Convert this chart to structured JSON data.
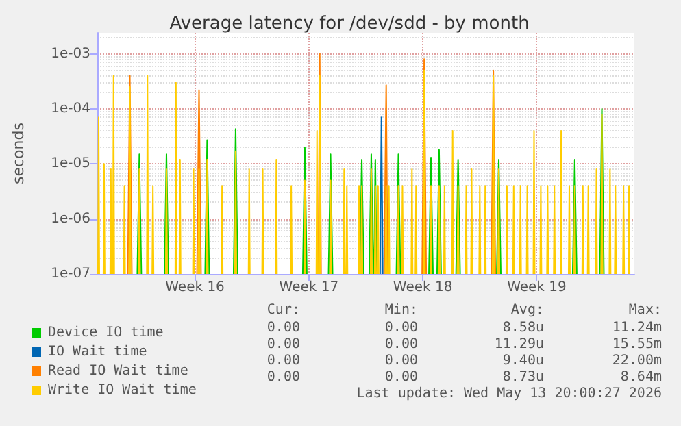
{
  "chart_data": {
    "type": "line",
    "title": "Average latency for /dev/sdd - by month",
    "ylabel": "seconds",
    "xlim": [
      "2026-04-10T12:00",
      "2026-05-13T12:00"
    ],
    "xticks": [
      {
        "value": "2026-04-16T12:00",
        "label": "Week 16"
      },
      {
        "value": "2026-04-23T12:00",
        "label": "Week 17"
      },
      {
        "value": "2026-04-30T12:00",
        "label": "Week 18"
      },
      {
        "value": "2026-05-07T12:00",
        "label": "Week 19"
      }
    ],
    "ylim": [
      1e-07,
      0.0024
    ],
    "yticks": [
      {
        "value": 1e-07,
        "label": "1e-07"
      },
      {
        "value": 1e-06,
        "label": "1e-06"
      },
      {
        "value": 1e-05,
        "label": "1e-05"
      },
      {
        "value": 0.0001,
        "label": "1e-04"
      },
      {
        "value": 0.001,
        "label": "1e-03"
      }
    ],
    "log": "y",
    "grid": true,
    "legend": "bottom left",
    "marker": "none",
    "line_style": "solid",
    "series": [
      {
        "name": "Device IO time",
        "color": "#00cc00",
        "x": [
          "2026-04-12T23:00",
          "2026-04-13T02:00",
          "2026-04-13T05:00",
          "2026-04-14T15:00",
          "2026-04-14T18:00",
          "2026-04-14T21:00",
          "2026-04-17T03:00",
          "2026-04-17T06:00",
          "2026-04-17T09:00",
          "2026-04-18T21:00",
          "2026-04-19T00:00",
          "2026-04-19T03:00",
          "2026-04-23T03:00",
          "2026-04-23T06:00",
          "2026-04-23T09:00",
          "2026-04-24T17:00",
          "2026-04-24T20:00",
          "2026-04-24T23:00",
          "2026-04-26T15:00",
          "2026-04-26T18:00",
          "2026-04-26T21:00",
          "2026-04-27T05:00",
          "2026-04-27T08:00",
          "2026-04-27T11:00",
          "2026-04-27T12:00",
          "2026-04-27T14:00",
          "2026-04-27T16:00",
          "2026-04-28T21:00",
          "2026-04-29T00:00",
          "2026-04-29T03:00",
          "2026-04-30T21:00",
          "2026-05-01T00:00",
          "2026-05-01T03:00",
          "2026-05-01T09:00",
          "2026-05-01T12:00",
          "2026-05-01T15:00",
          "2026-05-02T13:00",
          "2026-05-02T16:00",
          "2026-05-02T19:00",
          "2026-05-05T01:00",
          "2026-05-05T04:00",
          "2026-05-05T07:00",
          "2026-05-09T17:00",
          "2026-05-09T20:00",
          "2026-05-09T23:00",
          "2026-05-11T09:00",
          "2026-05-11T12:00",
          "2026-05-11T15:00"
        ],
        "values": [
          1e-07,
          1.5e-05,
          1e-07,
          1e-07,
          1.5e-05,
          1e-07,
          1e-07,
          2.7e-05,
          1e-07,
          1e-07,
          4.3e-05,
          1e-07,
          1e-07,
          2e-05,
          1e-07,
          1e-07,
          1.5e-05,
          1e-07,
          1e-07,
          1.2e-05,
          1e-07,
          1e-07,
          1.5e-05,
          1e-07,
          1e-07,
          1.2e-05,
          1e-07,
          1e-07,
          1.5e-05,
          1e-07,
          1e-07,
          1.3e-05,
          1e-07,
          1e-07,
          1.8e-05,
          1e-07,
          1e-07,
          1.2e-05,
          1e-07,
          1e-07,
          1.2e-05,
          1e-07,
          1e-07,
          1.2e-05,
          1e-07,
          1e-07,
          0.0001,
          1e-07
        ]
      },
      {
        "name": "IO Wait time",
        "color": "#0066b3",
        "x": [
          "2026-04-27T21:00",
          "2026-04-27T23:00",
          "2026-04-28T01:00"
        ],
        "values": [
          1e-07,
          7e-05,
          1e-07
        ]
      },
      {
        "name": "Read IO Wait time",
        "color": "#ff8000",
        "x": [
          "2026-04-12T09:00",
          "2026-04-12T12:00",
          "2026-04-12T15:00",
          "2026-04-16T15:00",
          "2026-04-16T18:00",
          "2026-04-16T21:00",
          "2026-04-24T02:00",
          "2026-04-24T04:00",
          "2026-04-24T06:00",
          "2026-04-28T03:00",
          "2026-04-28T06:00",
          "2026-04-28T08:00",
          "2026-04-30T11:00",
          "2026-04-30T14:00",
          "2026-04-30T17:00",
          "2026-05-04T17:00",
          "2026-05-04T20:00",
          "2026-05-04T23:00"
        ],
        "values": [
          1e-07,
          0.0004,
          1e-07,
          1e-07,
          0.00022,
          1e-07,
          1e-07,
          0.001,
          1e-07,
          1e-07,
          0.00027,
          1e-07,
          1e-07,
          0.0008,
          1e-07,
          1e-07,
          0.0005,
          1e-07
        ]
      },
      {
        "name": "Write IO Wait time",
        "color": "#ffcc00",
        "x": [
          "2026-04-10T13:00",
          "2026-04-10T14:00",
          "2026-04-10T15:00",
          "2026-04-10T21:00",
          "2026-04-10T22:00",
          "2026-04-10T23:00",
          "2026-04-11T07:00",
          "2026-04-11T08:00",
          "2026-04-11T09:00",
          "2026-04-11T11:00",
          "2026-04-11T12:00",
          "2026-04-11T13:00",
          "2026-04-12T03:00",
          "2026-04-12T04:00",
          "2026-04-12T05:00",
          "2026-04-12T11:00",
          "2026-04-12T12:00",
          "2026-04-12T13:00",
          "2026-04-13T01:00",
          "2026-04-13T02:00",
          "2026-04-13T03:00",
          "2026-04-13T13:00",
          "2026-04-13T14:00",
          "2026-04-13T15:00",
          "2026-04-13T21:00",
          "2026-04-13T22:00",
          "2026-04-13T23:00",
          "2026-04-14T17:00",
          "2026-04-14T18:00",
          "2026-04-14T19:00",
          "2026-04-15T07:00",
          "2026-04-15T08:00",
          "2026-04-15T09:00",
          "2026-04-15T13:00",
          "2026-04-15T14:00",
          "2026-04-15T15:00",
          "2026-04-16T09:00",
          "2026-04-16T10:00",
          "2026-04-16T11:00",
          "2026-04-16T17:00",
          "2026-04-16T18:00",
          "2026-04-16T19:00",
          "2026-04-17T05:00",
          "2026-04-17T06:00",
          "2026-04-17T07:00",
          "2026-04-18T03:00",
          "2026-04-18T04:00",
          "2026-04-18T05:00",
          "2026-04-18T23:00",
          "2026-04-19T00:00",
          "2026-04-19T01:00",
          "2026-04-19T19:00",
          "2026-04-19T20:00",
          "2026-04-19T21:00",
          "2026-04-20T15:00",
          "2026-04-20T16:00",
          "2026-04-20T17:00",
          "2026-04-21T11:00",
          "2026-04-21T12:00",
          "2026-04-21T13:00",
          "2026-04-22T09:00",
          "2026-04-22T10:00",
          "2026-04-22T11:00",
          "2026-04-23T05:00",
          "2026-04-23T06:00",
          "2026-04-23T07:00",
          "2026-04-23T23:00",
          "2026-04-24T00:00",
          "2026-04-24T01:00",
          "2026-04-24T03:00",
          "2026-04-24T04:00",
          "2026-04-24T05:00",
          "2026-04-24T19:00",
          "2026-04-24T20:00",
          "2026-04-24T21:00",
          "2026-04-25T15:00",
          "2026-04-25T16:00",
          "2026-04-25T17:00",
          "2026-04-25T19:00",
          "2026-04-25T20:00",
          "2026-04-25T21:00",
          "2026-04-26T13:00",
          "2026-04-26T14:00",
          "2026-04-26T15:00",
          "2026-04-26T17:00",
          "2026-04-26T18:00",
          "2026-04-26T19:00",
          "2026-04-27T07:00",
          "2026-04-27T08:00",
          "2026-04-27T09:00",
          "2026-04-27T13:00",
          "2026-04-27T14:00",
          "2026-04-27T15:00",
          "2026-04-27T17:00",
          "2026-04-27T18:00",
          "2026-04-27T19:00",
          "2026-04-28T05:00",
          "2026-04-28T06:00",
          "2026-04-28T07:00",
          "2026-04-28T09:00",
          "2026-04-28T10:00",
          "2026-04-28T11:00",
          "2026-04-28T23:00",
          "2026-04-29T00:00",
          "2026-04-29T01:00",
          "2026-04-29T05:00",
          "2026-04-29T06:00",
          "2026-04-29T07:00",
          "2026-04-29T19:00",
          "2026-04-29T20:00",
          "2026-04-29T21:00",
          "2026-04-30T01:00",
          "2026-04-30T02:00",
          "2026-04-30T03:00",
          "2026-04-30T13:00",
          "2026-04-30T14:00",
          "2026-04-30T15:00",
          "2026-04-30T23:00",
          "2026-05-01T00:00",
          "2026-05-01T01:00",
          "2026-05-01T11:00",
          "2026-05-01T12:00",
          "2026-05-01T13:00",
          "2026-05-01T19:00",
          "2026-05-01T20:00",
          "2026-05-01T21:00",
          "2026-05-02T07:00",
          "2026-05-02T08:00",
          "2026-05-02T09:00",
          "2026-05-02T15:00",
          "2026-05-02T16:00",
          "2026-05-02T17:00",
          "2026-05-03T03:00",
          "2026-05-03T04:00",
          "2026-05-03T05:00",
          "2026-05-03T11:00",
          "2026-05-03T12:00",
          "2026-05-03T13:00",
          "2026-05-03T23:00",
          "2026-05-04T00:00",
          "2026-05-04T01:00",
          "2026-05-04T07:00",
          "2026-05-04T08:00",
          "2026-05-04T09:00",
          "2026-05-04T19:00",
          "2026-05-04T20:00",
          "2026-05-04T21:00",
          "2026-05-05T03:00",
          "2026-05-05T04:00",
          "2026-05-05T05:00",
          "2026-05-05T15:00",
          "2026-05-05T16:00",
          "2026-05-05T17:00",
          "2026-05-06T01:00",
          "2026-05-06T02:00",
          "2026-05-06T03:00",
          "2026-05-06T11:00",
          "2026-05-06T12:00",
          "2026-05-06T13:00",
          "2026-05-06T21:00",
          "2026-05-06T22:00",
          "2026-05-06T23:00",
          "2026-05-07T07:00",
          "2026-05-07T08:00",
          "2026-05-07T09:00",
          "2026-05-07T17:00",
          "2026-05-07T18:00",
          "2026-05-07T19:00",
          "2026-05-08T03:00",
          "2026-05-08T04:00",
          "2026-05-08T05:00",
          "2026-05-08T13:00",
          "2026-05-08T14:00",
          "2026-05-08T15:00",
          "2026-05-08T23:00",
          "2026-05-09T00:00",
          "2026-05-09T01:00",
          "2026-05-09T11:00",
          "2026-05-09T12:00",
          "2026-05-09T13:00",
          "2026-05-09T19:00",
          "2026-05-09T20:00",
          "2026-05-09T21:00",
          "2026-05-10T07:00",
          "2026-05-10T08:00",
          "2026-05-10T09:00",
          "2026-05-10T15:00",
          "2026-05-10T16:00",
          "2026-05-10T17:00",
          "2026-05-11T03:00",
          "2026-05-11T04:00",
          "2026-05-11T05:00",
          "2026-05-11T11:00",
          "2026-05-11T12:00",
          "2026-05-11T13:00",
          "2026-05-11T23:00",
          "2026-05-12T00:00",
          "2026-05-12T01:00",
          "2026-05-12T07:00",
          "2026-05-12T08:00",
          "2026-05-12T09:00",
          "2026-05-12T19:00",
          "2026-05-12T20:00",
          "2026-05-12T21:00",
          "2026-05-13T03:00",
          "2026-05-13T04:00",
          "2026-05-13T05:00"
        ],
        "values": [
          1e-07,
          7e-05,
          1e-07,
          1e-07,
          1e-05,
          1e-07,
          1e-07,
          8e-06,
          1e-07,
          1e-07,
          0.0004,
          1e-07,
          1e-07,
          4e-06,
          1e-07,
          1e-07,
          0.00025,
          1e-07,
          1e-07,
          8e-06,
          1e-07,
          1e-07,
          0.0004,
          1e-07,
          1e-07,
          4e-06,
          1e-07,
          1e-07,
          8e-06,
          1e-07,
          1e-07,
          0.0003,
          1e-07,
          1e-07,
          1.2e-05,
          1e-07,
          1e-07,
          8e-06,
          1e-07,
          1e-07,
          8e-06,
          1e-07,
          1e-07,
          1.2e-05,
          1e-07,
          1e-07,
          4e-06,
          1e-07,
          1e-07,
          1.7e-05,
          1e-07,
          1e-07,
          8e-06,
          1e-07,
          1e-07,
          8e-06,
          1e-07,
          1e-07,
          1.2e-05,
          1e-07,
          1e-07,
          4e-06,
          1e-07,
          1e-07,
          5e-06,
          1e-07,
          1e-07,
          4e-05,
          1e-07,
          1e-07,
          0.0004,
          1e-07,
          1e-07,
          5e-06,
          1e-07,
          1e-07,
          8e-06,
          1e-07,
          1e-07,
          4e-06,
          1e-07,
          1e-07,
          4e-06,
          1e-07,
          1e-07,
          4e-06,
          1e-07,
          1e-07,
          8e-06,
          1e-07,
          1e-07,
          4e-06,
          1e-07,
          1e-07,
          4e-06,
          1e-07,
          1e-07,
          4e-06,
          1e-07,
          1e-07,
          4e-06,
          1e-07,
          1e-07,
          4e-06,
          1e-07,
          1e-07,
          4e-06,
          1e-07,
          1e-07,
          8e-06,
          1e-07,
          1e-07,
          4e-06,
          1e-07,
          1e-07,
          0.0005,
          1e-07,
          1e-07,
          4e-06,
          1e-07,
          1e-07,
          4e-06,
          1e-07,
          1e-07,
          4e-06,
          1e-07,
          1e-07,
          4e-05,
          1e-07,
          1e-07,
          4e-06,
          1e-07,
          1e-07,
          4e-06,
          1e-07,
          1e-07,
          8e-06,
          1e-07,
          1e-07,
          4e-06,
          1e-07,
          1e-07,
          4e-06,
          1e-07,
          1e-07,
          0.0004,
          1e-07,
          1e-07,
          8e-06,
          1e-07,
          1e-07,
          4e-06,
          1e-07,
          1e-07,
          4e-06,
          1e-07,
          1e-07,
          4e-06,
          1e-07,
          1e-07,
          4e-06,
          1e-07,
          1e-07,
          4e-05,
          1e-07,
          1e-07,
          4e-06,
          1e-07,
          1e-07,
          4e-06,
          1e-07,
          1e-07,
          4e-06,
          1e-07,
          1e-07,
          4e-05,
          1e-07,
          1e-07,
          4e-06,
          1e-07,
          1e-07,
          4e-06,
          1e-07,
          1e-07,
          4e-06,
          1e-07,
          1e-07,
          4e-06,
          1e-07,
          1e-07,
          8e-06,
          1e-07,
          1e-07,
          8e-05,
          1e-07,
          1e-07,
          8e-06,
          1e-07,
          1e-07,
          4e-06,
          1e-07,
          1e-07,
          4e-06,
          1e-07,
          1e-07,
          4e-06,
          1e-07
        ]
      }
    ],
    "annotations": [
      "Cur:",
      "Min:",
      "Avg:",
      "Max:",
      "0.00",
      "0.00",
      "8.58u",
      "11.24m",
      "0.00",
      "0.00",
      "11.29u",
      "15.55m",
      "0.00",
      "0.00",
      "9.40u",
      "22.00m",
      "0.00",
      "0.00",
      "8.73u",
      "8.64m",
      "Last update: Wed May 13 20:00:27 2026"
    ]
  }
}
